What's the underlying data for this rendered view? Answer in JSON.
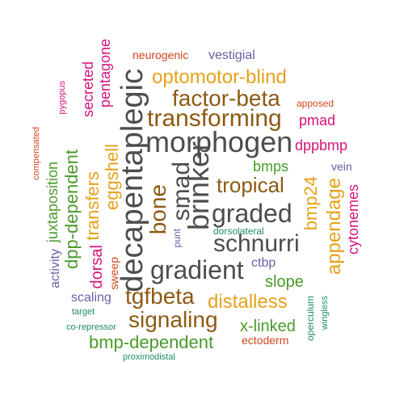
{
  "colors": {
    "dark": "#4d4d4d",
    "brown": "#8c5a14",
    "orange": "#e6a21a",
    "green": "#4a9a2a",
    "pink": "#d6147a",
    "purple": "#6a5fa8",
    "red": "#d2461c",
    "teal": "#1e8c6a"
  },
  "words": {
    "morphogen": "morphogen",
    "decapentaplegic": "decapentaplegic",
    "brinker": "brinker",
    "transforming": "transforming",
    "graded": "graded",
    "gradient": "gradient",
    "factor_beta": "factor-beta",
    "optomotor_blind": "optomotor-blind",
    "smad": "smad",
    "schnurri": "schnurri",
    "signaling": "signaling",
    "tgfbeta": "tgfbeta",
    "bone": "bone",
    "tropical": "tropical",
    "distalless": "distalless",
    "bmp_dependent": "bmp-dependent",
    "appendage": "appendage",
    "bmp24": "bmp24",
    "dpp_dependent": "dpp-dependent",
    "transfers": "transfers",
    "eggshell": "eggshell",
    "x_linked": "x-linked",
    "slope": "slope",
    "bmps": "bmps",
    "dppbmp": "dppbmp",
    "pmad": "pmad",
    "juxtaposition": "juxtaposition",
    "dorsal": "dorsal",
    "secreted": "secreted",
    "pentagone": "pentagone",
    "cytonemes": "cytonemes",
    "vestigial": "vestigial",
    "neurogenic": "neurogenic",
    "scaling": "scaling",
    "activity": "activity",
    "ctbp": "ctbp",
    "vein": "vein",
    "ectoderm": "ectoderm",
    "sweep": "sweep",
    "apposed": "apposed",
    "punt": "punt",
    "dorsolateral": "dorsolateral",
    "compensated": "compensated",
    "pygopus": "pygopus",
    "operculum": "operculum",
    "wingless": "wingless",
    "target": "target",
    "co_repressor": "co-repressor",
    "proximodistal": "proximodistal"
  }
}
